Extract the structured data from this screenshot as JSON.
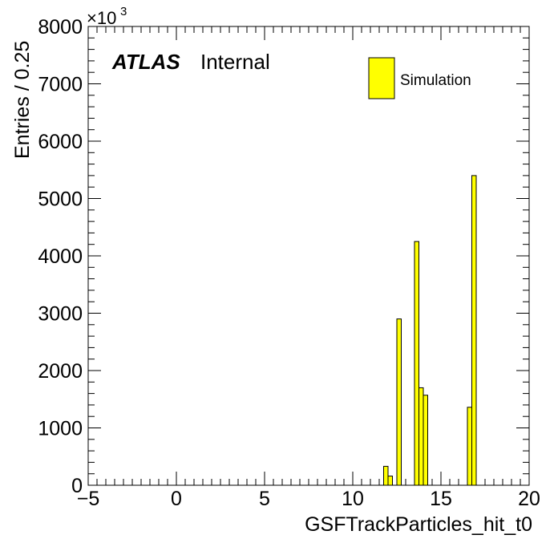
{
  "chart_data": {
    "type": "bar",
    "title": "",
    "xlabel": "GSFTrackParticles_hit_t0",
    "ylabel": "Entries / 0.25",
    "y_multiplier_label": "×10",
    "y_multiplier_exponent": "3",
    "xlim": [
      -5,
      20
    ],
    "ylim": [
      0,
      8000
    ],
    "x_ticks": [
      -5,
      0,
      5,
      10,
      15,
      20
    ],
    "x_tick_labels": [
      "−5",
      "0",
      "5",
      "10",
      "15",
      "20"
    ],
    "y_ticks": [
      0,
      1000,
      2000,
      3000,
      4000,
      5000,
      6000,
      7000,
      8000
    ],
    "y_tick_labels": [
      "0",
      "1000",
      "2000",
      "3000",
      "4000",
      "5000",
      "6000",
      "7000",
      "8000"
    ],
    "bin_width": 0.25,
    "grid": false,
    "legend_position": "top-right",
    "series": [
      {
        "name": "Simulation",
        "color": "#ffff00",
        "bins": [
          {
            "x_low": 11.75,
            "x_high": 12.0,
            "value": 330
          },
          {
            "x_low": 12.0,
            "x_high": 12.25,
            "value": 160
          },
          {
            "x_low": 12.5,
            "x_high": 12.75,
            "value": 2900
          },
          {
            "x_low": 13.5,
            "x_high": 13.75,
            "value": 4250
          },
          {
            "x_low": 13.75,
            "x_high": 14.0,
            "value": 1700
          },
          {
            "x_low": 14.0,
            "x_high": 14.25,
            "value": 1570
          },
          {
            "x_low": 16.5,
            "x_high": 16.75,
            "value": 1360
          },
          {
            "x_low": 16.75,
            "x_high": 17.0,
            "value": 5400
          }
        ]
      }
    ],
    "annotations": {
      "atlas_label": "ATLAS",
      "atlas_status": "Internal"
    }
  }
}
